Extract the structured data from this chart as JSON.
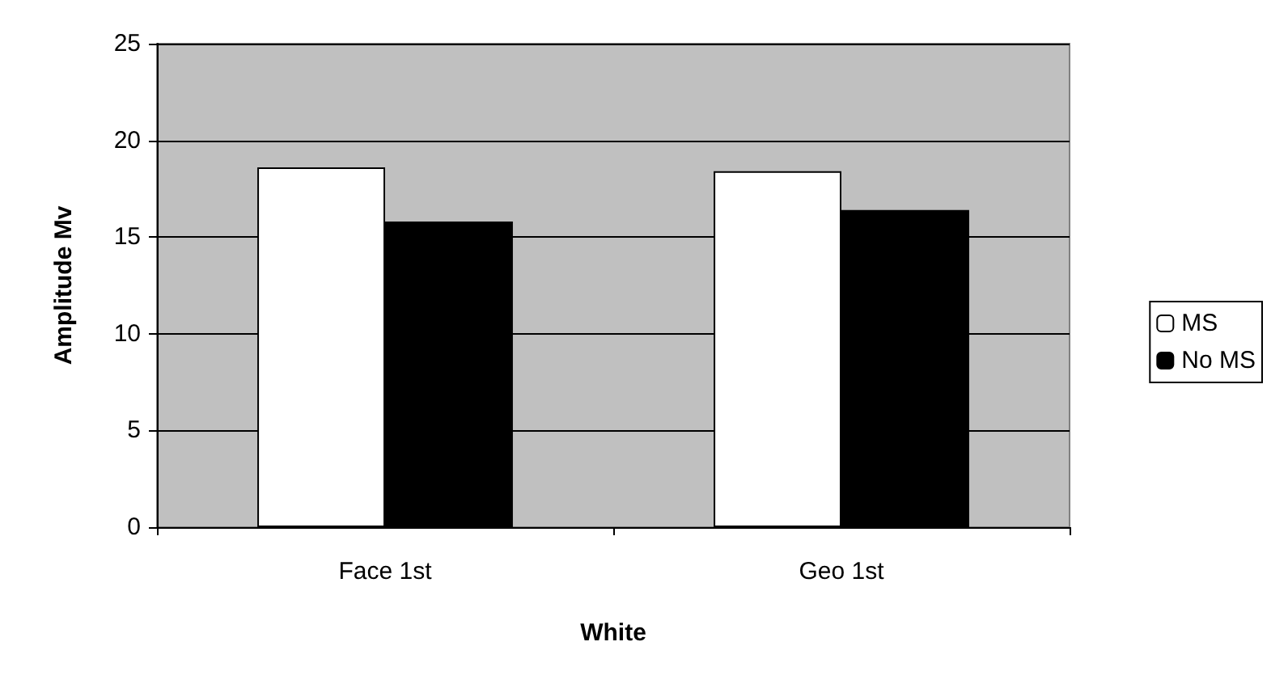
{
  "chart_data": {
    "type": "bar",
    "xlabel": "White",
    "ylabel": "Amplitude Mv",
    "categories": [
      "Face 1st",
      "Geo 1st"
    ],
    "series": [
      {
        "name": "MS",
        "color": "#ffffff",
        "values": [
          18.6,
          18.4
        ]
      },
      {
        "name": "No MS",
        "color": "#000000",
        "values": [
          15.8,
          16.4
        ]
      }
    ],
    "ylim": [
      0,
      25
    ],
    "yticks": [
      0,
      5,
      10,
      15,
      20,
      25
    ],
    "grid": true,
    "legend": "right"
  }
}
